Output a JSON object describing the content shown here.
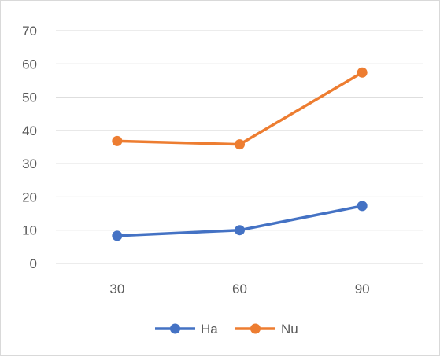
{
  "chart_data": {
    "type": "line",
    "categories": [
      "30",
      "60",
      "90"
    ],
    "series": [
      {
        "name": "Ha",
        "values": [
          8.3,
          10.0,
          17.3
        ],
        "color": "#4472c4"
      },
      {
        "name": "Nu",
        "values": [
          36.8,
          35.8,
          57.4
        ],
        "color": "#ed7d31"
      }
    ],
    "y_ticks": [
      "0",
      "10",
      "20",
      "30",
      "40",
      "50",
      "60",
      "70"
    ],
    "ylim": [
      0,
      70
    ],
    "grid": true,
    "legend_position": "bottom",
    "gridline_color": "#d9d9d9"
  }
}
